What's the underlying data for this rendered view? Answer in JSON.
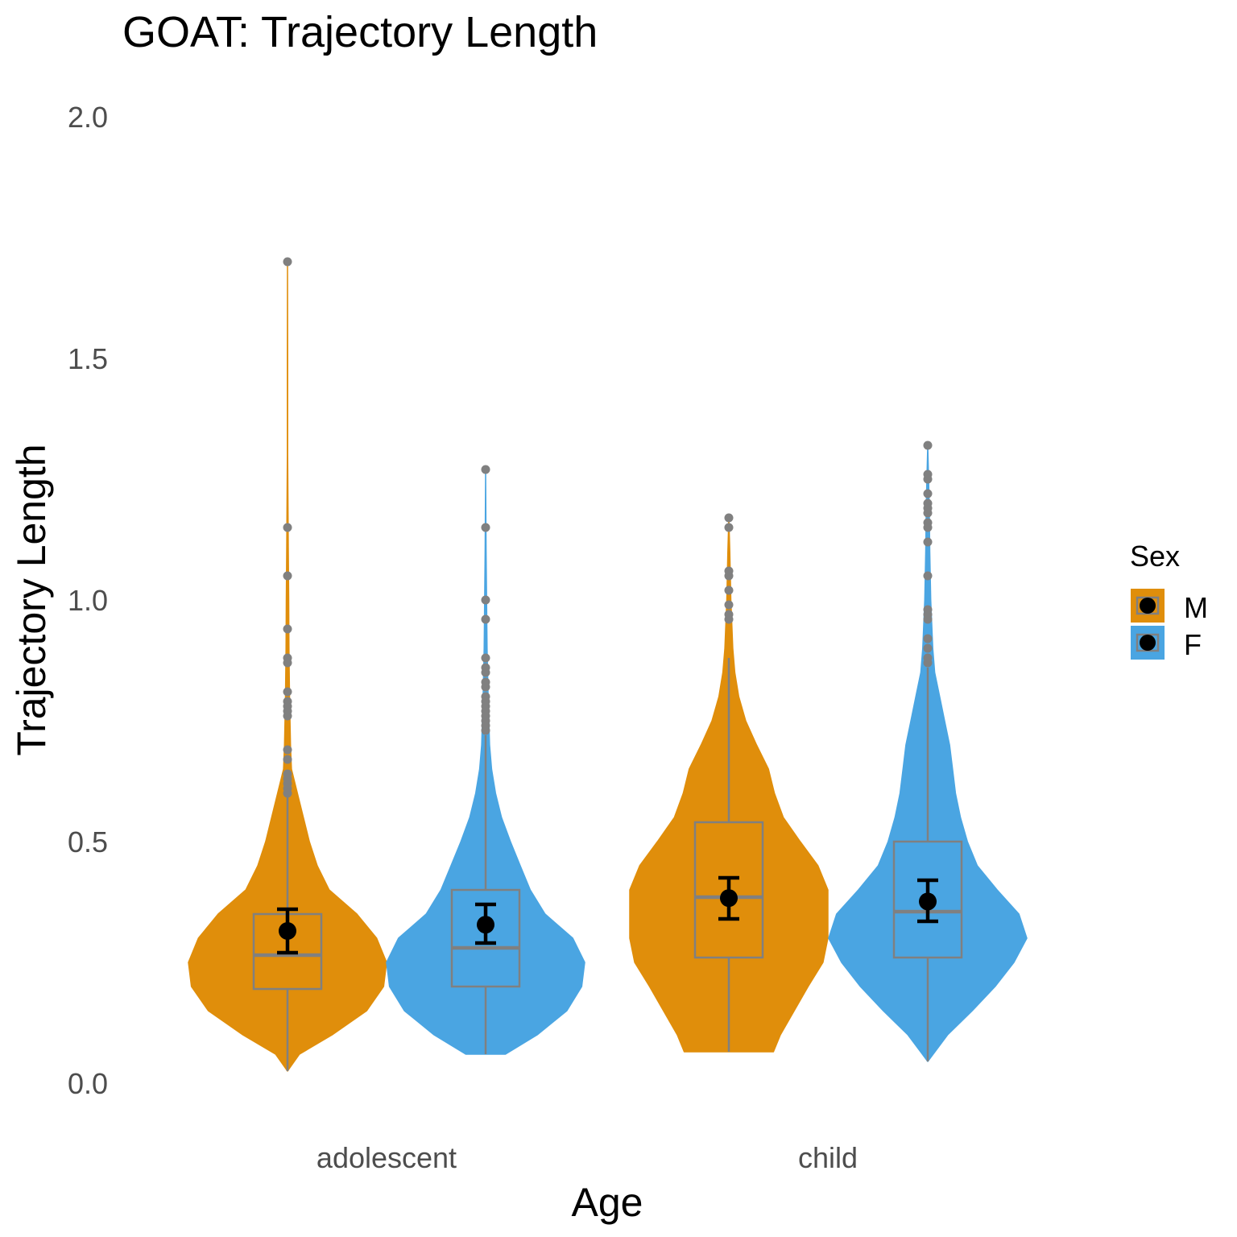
{
  "chart_data": {
    "type": "violin",
    "title": "GOAT: Trajectory Length",
    "xlabel": "Age",
    "ylabel": "Trajectory Length",
    "categories": [
      "adolescent",
      "child"
    ],
    "y_ticks": [
      "0.0",
      "0.5",
      "1.0",
      "1.5",
      "2.0"
    ],
    "ylim": [
      0,
      2.0
    ],
    "grid": false,
    "legend": {
      "title": "Sex",
      "position": "right",
      "entries": [
        {
          "label": "M",
          "color": "#E08E0B"
        },
        {
          "label": "F",
          "color": "#4AA5E2"
        }
      ]
    },
    "series": [
      {
        "name": "M",
        "color": "#E08E0B",
        "groups": [
          {
            "category": "adolescent",
            "violin": {
              "ymin": 0.025,
              "ymax": 1.7,
              "profile": [
                [
                  0.025,
                  0.0
                ],
                [
                  0.06,
                  0.12
                ],
                [
                  0.1,
                  0.45
                ],
                [
                  0.15,
                  0.8
                ],
                [
                  0.2,
                  0.97
                ],
                [
                  0.25,
                  1.0
                ],
                [
                  0.3,
                  0.9
                ],
                [
                  0.35,
                  0.7
                ],
                [
                  0.4,
                  0.42
                ],
                [
                  0.45,
                  0.3
                ],
                [
                  0.5,
                  0.22
                ],
                [
                  0.55,
                  0.16
                ],
                [
                  0.6,
                  0.1
                ],
                [
                  0.65,
                  0.04
                ],
                [
                  0.7,
                  0.03
                ],
                [
                  0.8,
                  0.02
                ],
                [
                  0.9,
                  0.015
                ],
                [
                  1.0,
                  0.012
                ],
                [
                  1.1,
                  0.008
                ],
                [
                  1.2,
                  0.005
                ],
                [
                  1.3,
                  0.002
                ],
                [
                  1.5,
                  0.002
                ],
                [
                  1.7,
                  0.0
                ]
              ]
            },
            "box": {
              "q1": 0.195,
              "median": 0.265,
              "q3": 0.35,
              "whisker_low": 0.025,
              "whisker_high": 0.6
            },
            "mean": 0.315,
            "ci": [
              0.27,
              0.36
            ],
            "outliers": [
              0.6,
              0.61,
              0.62,
              0.63,
              0.64,
              0.67,
              0.69,
              0.76,
              0.77,
              0.78,
              0.79,
              0.81,
              0.87,
              0.88,
              0.94,
              1.05,
              1.15,
              1.7
            ]
          },
          {
            "category": "child",
            "violin": {
              "ymin": 0.065,
              "ymax": 1.17,
              "profile": [
                [
                  0.065,
                  0.45
                ],
                [
                  0.1,
                  0.52
                ],
                [
                  0.15,
                  0.66
                ],
                [
                  0.2,
                  0.8
                ],
                [
                  0.25,
                  0.95
                ],
                [
                  0.3,
                  1.0
                ],
                [
                  0.35,
                  1.0
                ],
                [
                  0.4,
                  1.0
                ],
                [
                  0.45,
                  0.9
                ],
                [
                  0.5,
                  0.72
                ],
                [
                  0.55,
                  0.55
                ],
                [
                  0.6,
                  0.46
                ],
                [
                  0.65,
                  0.4
                ],
                [
                  0.7,
                  0.28
                ],
                [
                  0.75,
                  0.17
                ],
                [
                  0.8,
                  0.1
                ],
                [
                  0.85,
                  0.06
                ],
                [
                  0.9,
                  0.04
                ],
                [
                  0.95,
                  0.03
                ],
                [
                  1.0,
                  0.02
                ],
                [
                  1.1,
                  0.01
                ],
                [
                  1.17,
                  0.0
                ]
              ]
            },
            "box": {
              "q1": 0.26,
              "median": 0.385,
              "q3": 0.54,
              "whisker_low": 0.065,
              "whisker_high": 0.88
            },
            "mean": 0.383,
            "ci": [
              0.34,
              0.425
            ],
            "outliers": [
              0.96,
              0.97,
              0.99,
              1.02,
              1.05,
              1.06,
              1.15,
              1.17
            ]
          }
        ]
      },
      {
        "name": "F",
        "color": "#4AA5E2",
        "groups": [
          {
            "category": "adolescent",
            "violin": {
              "ymin": 0.06,
              "ymax": 1.27,
              "profile": [
                [
                  0.06,
                  0.2
                ],
                [
                  0.1,
                  0.52
                ],
                [
                  0.15,
                  0.82
                ],
                [
                  0.2,
                  0.97
                ],
                [
                  0.25,
                  1.0
                ],
                [
                  0.3,
                  0.88
                ],
                [
                  0.35,
                  0.6
                ],
                [
                  0.4,
                  0.45
                ],
                [
                  0.45,
                  0.35
                ],
                [
                  0.5,
                  0.25
                ],
                [
                  0.55,
                  0.16
                ],
                [
                  0.6,
                  0.1
                ],
                [
                  0.65,
                  0.06
                ],
                [
                  0.7,
                  0.04
                ],
                [
                  0.8,
                  0.025
                ],
                [
                  0.9,
                  0.015
                ],
                [
                  1.0,
                  0.01
                ],
                [
                  1.1,
                  0.005
                ],
                [
                  1.27,
                  0.0
                ]
              ]
            },
            "box": {
              "q1": 0.2,
              "median": 0.28,
              "q3": 0.4,
              "whisker_low": 0.06,
              "whisker_high": 0.72
            },
            "mean": 0.328,
            "ci": [
              0.29,
              0.37
            ],
            "outliers": [
              0.73,
              0.74,
              0.75,
              0.76,
              0.77,
              0.78,
              0.79,
              0.8,
              0.82,
              0.83,
              0.85,
              0.86,
              0.88,
              0.96,
              1.0,
              1.15,
              1.27
            ]
          },
          {
            "category": "child",
            "violin": {
              "ymin": 0.045,
              "ymax": 1.32,
              "profile": [
                [
                  0.045,
                  0.0
                ],
                [
                  0.1,
                  0.2
                ],
                [
                  0.15,
                  0.45
                ],
                [
                  0.2,
                  0.68
                ],
                [
                  0.25,
                  0.87
                ],
                [
                  0.3,
                  1.0
                ],
                [
                  0.35,
                  0.92
                ],
                [
                  0.4,
                  0.7
                ],
                [
                  0.45,
                  0.5
                ],
                [
                  0.5,
                  0.4
                ],
                [
                  0.55,
                  0.33
                ],
                [
                  0.6,
                  0.28
                ],
                [
                  0.65,
                  0.25
                ],
                [
                  0.7,
                  0.22
                ],
                [
                  0.75,
                  0.17
                ],
                [
                  0.8,
                  0.12
                ],
                [
                  0.85,
                  0.07
                ],
                [
                  0.9,
                  0.05
                ],
                [
                  1.0,
                  0.03
                ],
                [
                  1.1,
                  0.02
                ],
                [
                  1.2,
                  0.015
                ],
                [
                  1.32,
                  0.0
                ]
              ]
            },
            "box": {
              "q1": 0.26,
              "median": 0.355,
              "q3": 0.5,
              "whisker_low": 0.045,
              "whisker_high": 0.86
            },
            "mean": 0.376,
            "ci": [
              0.335,
              0.42
            ],
            "outliers": [
              0.87,
              0.88,
              0.9,
              0.92,
              0.96,
              0.97,
              0.98,
              1.05,
              1.12,
              1.15,
              1.16,
              1.18,
              1.19,
              1.2,
              1.22,
              1.25,
              1.26,
              1.32
            ]
          }
        ]
      }
    ]
  }
}
